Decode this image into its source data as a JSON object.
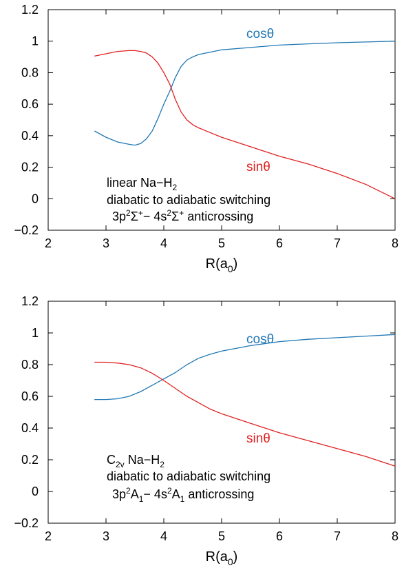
{
  "chart_data": [
    {
      "type": "line",
      "xlim": [
        2,
        8
      ],
      "ylim": [
        -0.2,
        1.2
      ],
      "xticks": [
        2,
        3,
        4,
        5,
        6,
        7,
        8
      ],
      "yticks": [
        -0.2,
        0,
        0.2,
        0.4,
        0.6,
        0.8,
        1,
        1.2
      ],
      "xtick_labels": [
        "2",
        "3",
        "4",
        "5",
        "6",
        "7",
        "8"
      ],
      "ytick_labels": [
        "−0.2",
        "0",
        "0.2",
        "0.4",
        "0.6",
        "0.8",
        "1",
        "1.2"
      ],
      "xlabel": {
        "main": "R(a",
        "sub": "0",
        "close": ")"
      },
      "grid": false,
      "annotation": {
        "line1": {
          "prefix": "linear Na−H",
          "sub": "2"
        },
        "line2": "diabatic to adiabatic switching",
        "line3": [
          {
            "t": "3p",
            "s": "n"
          },
          {
            "t": "2",
            "s": "sup"
          },
          {
            "t": "Σ",
            "s": "n"
          },
          {
            "t": "+",
            "s": "sup"
          },
          {
            "t": "− 4s",
            "s": "n"
          },
          {
            "t": "2",
            "s": "sup"
          },
          {
            "t": "Σ",
            "s": "n"
          },
          {
            "t": "+",
            "s": "sup"
          },
          {
            "t": " anticrossing",
            "s": "n"
          }
        ]
      },
      "series": [
        {
          "name": "cosθ",
          "color": "#1f77b4",
          "x": [
            2.8,
            3.0,
            3.2,
            3.4,
            3.5,
            3.6,
            3.7,
            3.8,
            3.9,
            4.0,
            4.1,
            4.2,
            4.3,
            4.4,
            4.5,
            4.6,
            4.8,
            5.0,
            5.5,
            6.0,
            6.5,
            7.0,
            7.5,
            8.0
          ],
          "y": [
            0.43,
            0.39,
            0.36,
            0.345,
            0.34,
            0.35,
            0.38,
            0.43,
            0.51,
            0.6,
            0.68,
            0.77,
            0.84,
            0.88,
            0.9,
            0.915,
            0.93,
            0.945,
            0.96,
            0.975,
            0.983,
            0.99,
            0.995,
            1.0
          ]
        },
        {
          "name": "sinθ",
          "color": "#e02020",
          "x": [
            2.8,
            3.0,
            3.2,
            3.4,
            3.5,
            3.6,
            3.7,
            3.8,
            3.9,
            4.0,
            4.1,
            4.2,
            4.3,
            4.4,
            4.5,
            4.6,
            4.8,
            5.0,
            5.5,
            6.0,
            6.5,
            7.0,
            7.5,
            8.0
          ],
          "y": [
            0.905,
            0.92,
            0.935,
            0.94,
            0.94,
            0.935,
            0.925,
            0.9,
            0.86,
            0.8,
            0.73,
            0.63,
            0.55,
            0.5,
            0.47,
            0.45,
            0.42,
            0.39,
            0.33,
            0.27,
            0.22,
            0.16,
            0.09,
            0.0
          ]
        }
      ]
    },
    {
      "type": "line",
      "xlim": [
        2,
        8
      ],
      "ylim": [
        -0.2,
        1.2
      ],
      "xticks": [
        2,
        3,
        4,
        5,
        6,
        7,
        8
      ],
      "yticks": [
        -0.2,
        0,
        0.2,
        0.4,
        0.6,
        0.8,
        1,
        1.2
      ],
      "xtick_labels": [
        "2",
        "3",
        "4",
        "5",
        "6",
        "7",
        "8"
      ],
      "ytick_labels": [
        "−0.2",
        "0",
        "0.2",
        "0.4",
        "0.6",
        "0.8",
        "1",
        "1.2"
      ],
      "xlabel": {
        "main": "R(a",
        "sub": "0",
        "close": ")"
      },
      "grid": false,
      "annotation": {
        "line1": [
          {
            "t": "C",
            "s": "n"
          },
          {
            "t": "2v",
            "s": "sub"
          },
          {
            "t": "  Na−H",
            "s": "n"
          },
          {
            "t": "2",
            "s": "sub"
          }
        ],
        "line2": "diabatic to adiabatic switching",
        "line3": [
          {
            "t": "3p",
            "s": "n"
          },
          {
            "t": "2",
            "s": "sup"
          },
          {
            "t": "A",
            "s": "n"
          },
          {
            "t": "1",
            "s": "sub"
          },
          {
            "t": "−  4s",
            "s": "n"
          },
          {
            "t": "2",
            "s": "sup"
          },
          {
            "t": "A",
            "s": "n"
          },
          {
            "t": "1",
            "s": "sub"
          },
          {
            "t": " anticrossing",
            "s": "n"
          }
        ]
      },
      "series": [
        {
          "name": "cosθ",
          "color": "#1f77b4",
          "x": [
            2.8,
            3.0,
            3.2,
            3.4,
            3.6,
            3.8,
            4.0,
            4.2,
            4.4,
            4.6,
            4.8,
            5.0,
            5.5,
            6.0,
            6.5,
            7.0,
            7.5,
            8.0
          ],
          "y": [
            0.58,
            0.58,
            0.585,
            0.6,
            0.63,
            0.67,
            0.71,
            0.75,
            0.8,
            0.84,
            0.865,
            0.885,
            0.92,
            0.945,
            0.96,
            0.97,
            0.98,
            0.99
          ]
        },
        {
          "name": "sinθ",
          "color": "#e02020",
          "x": [
            2.8,
            3.0,
            3.2,
            3.4,
            3.6,
            3.8,
            4.0,
            4.2,
            4.4,
            4.6,
            4.8,
            5.0,
            5.5,
            6.0,
            6.5,
            7.0,
            7.5,
            8.0
          ],
          "y": [
            0.815,
            0.815,
            0.81,
            0.8,
            0.78,
            0.745,
            0.7,
            0.65,
            0.6,
            0.56,
            0.52,
            0.49,
            0.43,
            0.37,
            0.32,
            0.27,
            0.22,
            0.16
          ]
        }
      ]
    }
  ]
}
